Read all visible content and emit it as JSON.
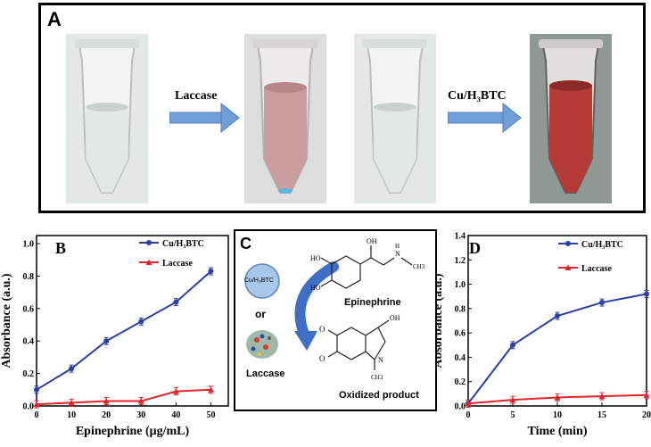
{
  "panel_a": {
    "letter": "A",
    "arrow1_label": "Laccase",
    "arrow2_label": "Cu/H₃BTC"
  },
  "panel_c": {
    "letter": "C",
    "catalyst_label": "Cu/H₃BTC",
    "or_label": "or",
    "enzyme_label": "Laccase",
    "substrate_label": "Epinephrine",
    "product_label": "Oxidized product"
  },
  "chart_data": [
    {
      "panel": "B",
      "type": "line",
      "xlabel": "Epinephrine (μg/mL)",
      "ylabel": "Absorbance (a.u.)",
      "xlim": [
        0,
        55
      ],
      "ylim": [
        0,
        1.05
      ],
      "x_ticks": [
        "0",
        "10",
        "20",
        "30",
        "40",
        "50"
      ],
      "y_ticks": [
        "0.0",
        "0.2",
        "0.4",
        "0.6",
        "0.8",
        "1.0"
      ],
      "legend_position": "top-right",
      "x": [
        0,
        10,
        20,
        30,
        40,
        50
      ],
      "series": [
        {
          "name": "Cu/H₃BTC",
          "color": "#2b3fa8",
          "values": [
            0.1,
            0.23,
            0.4,
            0.52,
            0.64,
            0.83
          ]
        },
        {
          "name": "Laccase",
          "color": "#e0262b",
          "values": [
            0.01,
            0.02,
            0.03,
            0.03,
            0.09,
            0.1
          ]
        }
      ]
    },
    {
      "panel": "D",
      "type": "line",
      "xlabel": "Time (min)",
      "ylabel": "Absorbance (a.u.)",
      "xlim": [
        0,
        20
      ],
      "ylim": [
        0,
        1.4
      ],
      "x_ticks": [
        "0",
        "5",
        "10",
        "15",
        "20"
      ],
      "y_ticks": [
        "0.0",
        "0.2",
        "0.4",
        "0.6",
        "0.8",
        "1.0",
        "1.2",
        "1.4"
      ],
      "legend_position": "top-right",
      "x": [
        0,
        5,
        10,
        15,
        20
      ],
      "series": [
        {
          "name": "Cu/H₃BTC",
          "color": "#2b3fa8",
          "values": [
            0.02,
            0.5,
            0.74,
            0.85,
            0.92
          ]
        },
        {
          "name": "Laccase",
          "color": "#e0262b",
          "values": [
            0.02,
            0.05,
            0.07,
            0.08,
            0.09
          ]
        }
      ]
    }
  ]
}
